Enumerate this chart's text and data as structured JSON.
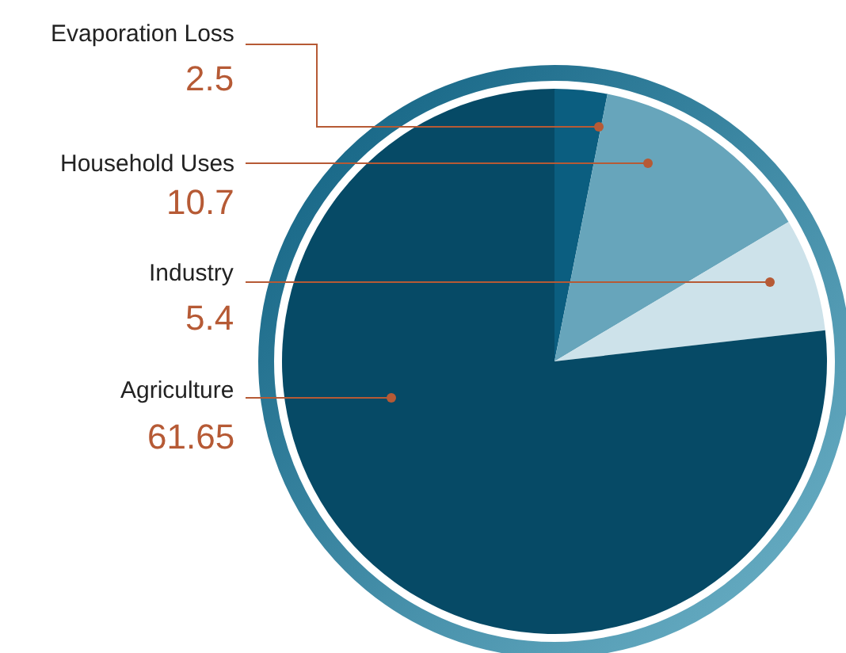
{
  "chart_data": {
    "type": "pie",
    "categories": [
      "Evaporation Loss",
      "Household Uses",
      "Industry",
      "Agriculture"
    ],
    "values": [
      2.5,
      10.7,
      5.4,
      61.65
    ],
    "colors": [
      "#0b5e80",
      "#67a5bb",
      "#cde2ea",
      "#064a66"
    ],
    "data_labels": true
  }
}
